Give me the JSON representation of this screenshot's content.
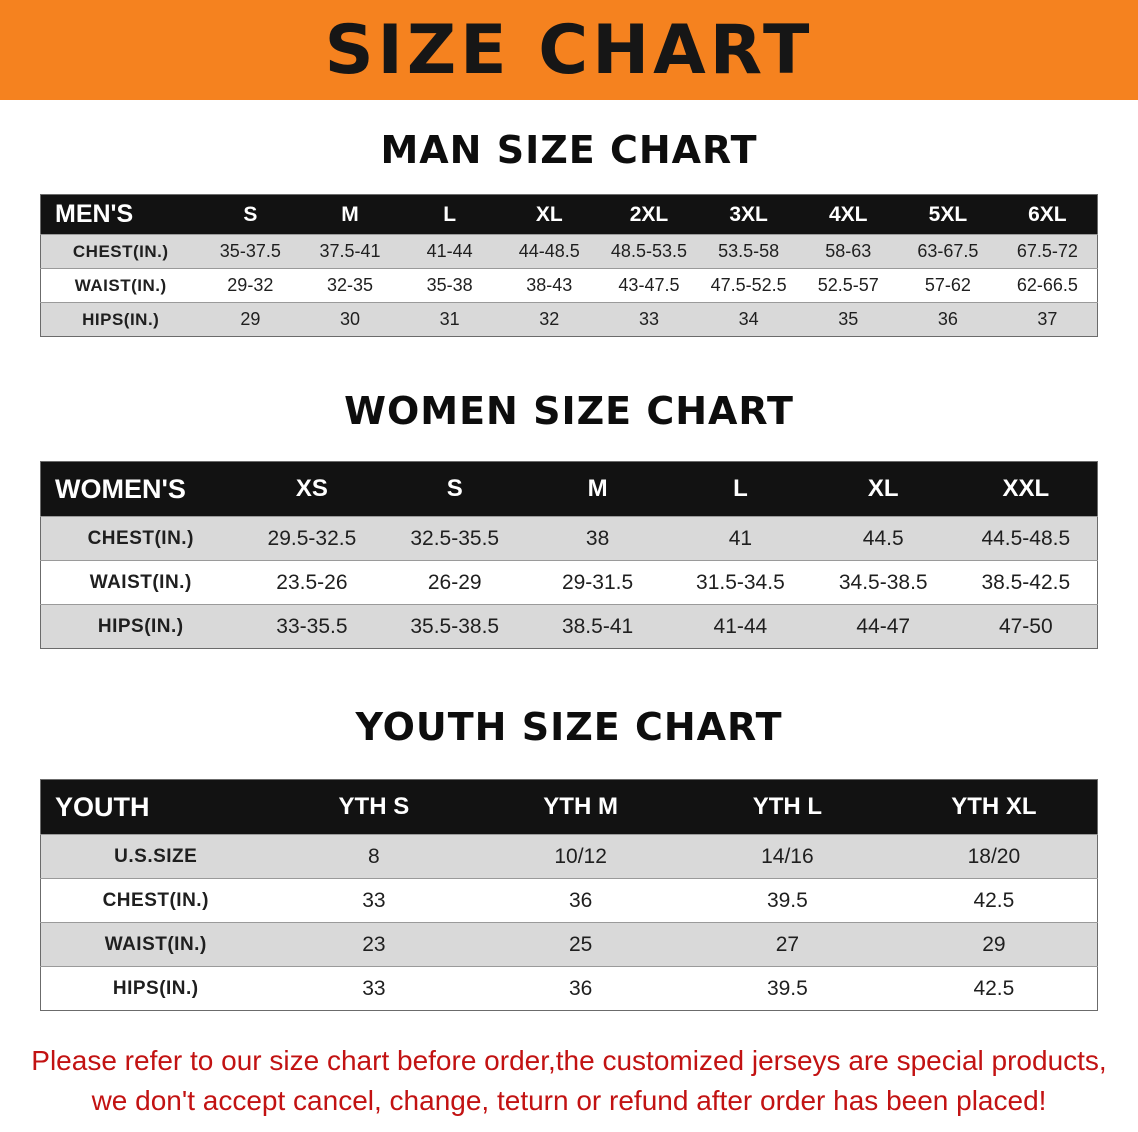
{
  "banner": {
    "title": "SIZE CHART"
  },
  "theme": {
    "banner_bg": "#f5821f",
    "banner_text": "#161616",
    "table_header_bg": "#121212",
    "table_header_text": "#ffffff",
    "row_stripe": "#d9d9d9",
    "row_text": "#1f1f1f",
    "footer_text": "#c21212"
  },
  "chart_data": [
    {
      "type": "table",
      "title": "MAN SIZE CHART",
      "header": [
        "MEN'S",
        "S",
        "M",
        "L",
        "XL",
        "2XL",
        "3XL",
        "4XL",
        "5XL",
        "6XL"
      ],
      "rows": [
        [
          "CHEST(IN.)",
          "35-37.5",
          "37.5-41",
          "41-44",
          "44-48.5",
          "48.5-53.5",
          "53.5-58",
          "58-63",
          "63-67.5",
          "67.5-72"
        ],
        [
          "WAIST(IN.)",
          "29-32",
          "32-35",
          "35-38",
          "38-43",
          "43-47.5",
          "47.5-52.5",
          "52.5-57",
          "57-62",
          "62-66.5"
        ],
        [
          "HIPS(IN.)",
          "29",
          "30",
          "31",
          "32",
          "33",
          "34",
          "35",
          "36",
          "37"
        ]
      ]
    },
    {
      "type": "table",
      "title": "WOMEN SIZE CHART",
      "header": [
        "WOMEN'S",
        "XS",
        "S",
        "M",
        "L",
        "XL",
        "XXL"
      ],
      "rows": [
        [
          "CHEST(IN.)",
          "29.5-32.5",
          "32.5-35.5",
          "38",
          "41",
          "44.5",
          "44.5-48.5"
        ],
        [
          "WAIST(IN.)",
          "23.5-26",
          "26-29",
          "29-31.5",
          "31.5-34.5",
          "34.5-38.5",
          "38.5-42.5"
        ],
        [
          "HIPS(IN.)",
          "33-35.5",
          "35.5-38.5",
          "38.5-41",
          "41-44",
          "44-47",
          "47-50"
        ]
      ]
    },
    {
      "type": "table",
      "title": "YOUTH SIZE CHART",
      "header": [
        "YOUTH",
        "YTH S",
        "YTH M",
        "YTH L",
        "YTH XL"
      ],
      "rows": [
        [
          "U.S.SIZE",
          "8",
          "10/12",
          "14/16",
          "18/20"
        ],
        [
          "CHEST(IN.)",
          "33",
          "36",
          "39.5",
          "42.5"
        ],
        [
          "WAIST(IN.)",
          "23",
          "25",
          "27",
          "29"
        ],
        [
          "HIPS(IN.)",
          "33",
          "36",
          "39.5",
          "42.5"
        ]
      ]
    }
  ],
  "footer": {
    "lines": [
      "Please refer to our size chart before order,the customized jerseys are special products,",
      "we don't accept cancel, change, teturn or refund after order has been placed!"
    ]
  }
}
